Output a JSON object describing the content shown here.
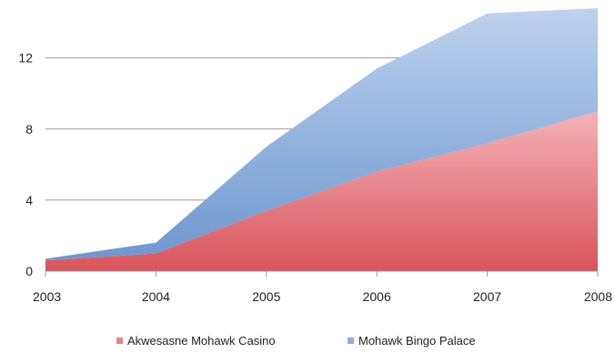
{
  "chart_data": {
    "type": "area",
    "stacked": true,
    "x": [
      "2003",
      "2004",
      "2005",
      "2006",
      "2007",
      "2008"
    ],
    "series": [
      {
        "name": "Akwesasne Mohawk Casino",
        "values": [
          0.6,
          1.0,
          3.4,
          5.6,
          7.2,
          9.0
        ],
        "color": "#e8858a"
      },
      {
        "name": "Mohawk Bingo Palace",
        "values": [
          0.1,
          0.6,
          3.6,
          5.8,
          7.3,
          5.8
        ],
        "color": "#8fb0dc"
      }
    ],
    "yticks": [
      "0",
      "4",
      "8",
      "12"
    ],
    "ylim": [
      0,
      14.9
    ],
    "grid": true,
    "legend": "bottom"
  }
}
